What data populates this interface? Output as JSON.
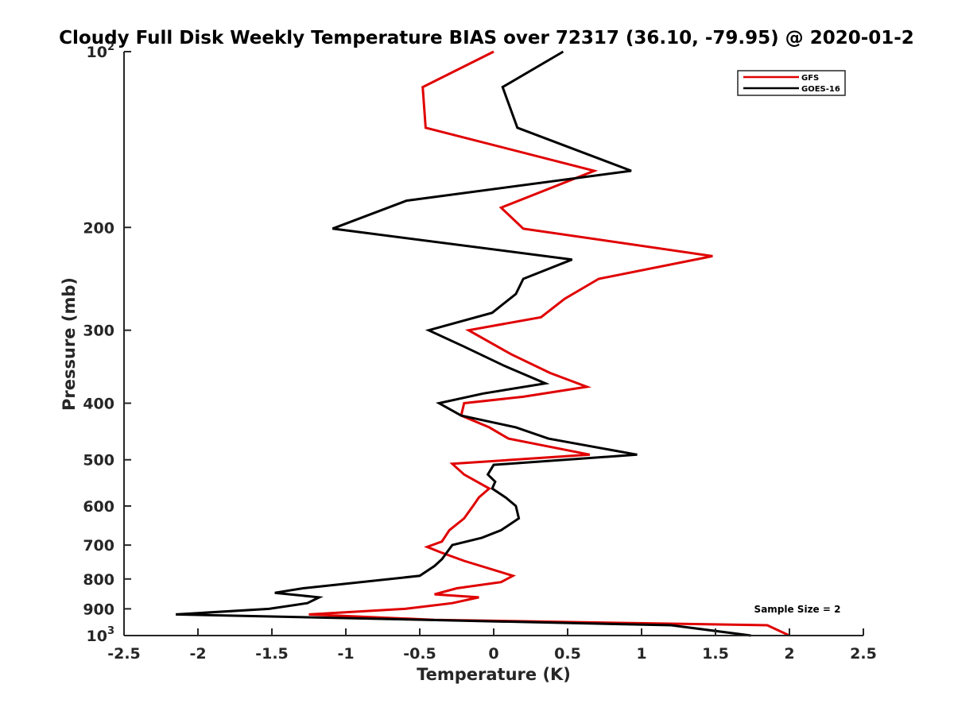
{
  "chart_data": {
    "type": "line",
    "title": "Cloudy Full Disk Weekly Temperature BIAS over 72317 (36.10, -79.95) @ 2020-01-2",
    "xlabel": "Temperature (K)",
    "ylabel": "Pressure (mb)",
    "xlim": [
      -2.5,
      2.5
    ],
    "ylim": [
      100,
      1000
    ],
    "y_scale": "log",
    "y_reversed": true,
    "grid": false,
    "legend_position": "top-right",
    "x_ticks": [
      "-2.5",
      "-2",
      "-1.5",
      "-1",
      "-0.5",
      "0",
      "0.5",
      "1",
      "1.5",
      "2",
      "2.5"
    ],
    "y_ticks": [
      {
        "value": 100,
        "label": "10",
        "sup": "2"
      },
      {
        "value": 200,
        "label": "200",
        "sup": ""
      },
      {
        "value": 300,
        "label": "300",
        "sup": ""
      },
      {
        "value": 400,
        "label": "400",
        "sup": ""
      },
      {
        "value": 500,
        "label": "500",
        "sup": ""
      },
      {
        "value": 600,
        "label": "600",
        "sup": ""
      },
      {
        "value": 700,
        "label": "700",
        "sup": ""
      },
      {
        "value": 800,
        "label": "800",
        "sup": ""
      },
      {
        "value": 900,
        "label": "900",
        "sup": ""
      },
      {
        "value": 1000,
        "label": "10",
        "sup": "3"
      }
    ],
    "annotation": "Sample Size = 2",
    "series": [
      {
        "name": "GFS",
        "color": "#e00000",
        "points": [
          [
            0.0,
            100
          ],
          [
            -0.48,
            115
          ],
          [
            -0.46,
            135
          ],
          [
            0.68,
            160
          ],
          [
            0.05,
            185
          ],
          [
            0.2,
            201
          ],
          [
            1.48,
            224
          ],
          [
            0.71,
            245
          ],
          [
            0.48,
            265
          ],
          [
            0.32,
            285
          ],
          [
            -0.17,
            300
          ],
          [
            0.12,
            330
          ],
          [
            0.38,
            355
          ],
          [
            0.63,
            375
          ],
          [
            0.2,
            390
          ],
          [
            -0.2,
            400
          ],
          [
            -0.22,
            420
          ],
          [
            -0.03,
            440
          ],
          [
            0.1,
            460
          ],
          [
            0.65,
            490
          ],
          [
            -0.28,
            508
          ],
          [
            -0.2,
            530
          ],
          [
            -0.03,
            560
          ],
          [
            -0.1,
            580
          ],
          [
            -0.14,
            600
          ],
          [
            -0.2,
            630
          ],
          [
            -0.3,
            660
          ],
          [
            -0.35,
            690
          ],
          [
            -0.45,
            705
          ],
          [
            -0.36,
            720
          ],
          [
            -0.2,
            745
          ],
          [
            0.13,
            790
          ],
          [
            0.05,
            810
          ],
          [
            -0.25,
            830
          ],
          [
            -0.4,
            850
          ],
          [
            -0.1,
            860
          ],
          [
            -0.28,
            880
          ],
          [
            -0.6,
            900
          ],
          [
            -1.25,
            920
          ],
          [
            -0.4,
            940
          ],
          [
            1.85,
            960
          ],
          [
            2.0,
            1000
          ]
        ]
      },
      {
        "name": "GOES-16",
        "color": "#000000",
        "points": [
          [
            0.47,
            100
          ],
          [
            0.06,
            115
          ],
          [
            0.16,
            135
          ],
          [
            0.93,
            160
          ],
          [
            -0.59,
            180
          ],
          [
            -1.09,
            201
          ],
          [
            0.53,
            227
          ],
          [
            0.2,
            245
          ],
          [
            0.15,
            260
          ],
          [
            -0.01,
            280
          ],
          [
            -0.44,
            300
          ],
          [
            -0.2,
            320
          ],
          [
            0.07,
            345
          ],
          [
            0.35,
            370
          ],
          [
            -0.07,
            385
          ],
          [
            -0.37,
            400
          ],
          [
            -0.22,
            420
          ],
          [
            0.15,
            440
          ],
          [
            0.37,
            460
          ],
          [
            0.97,
            490
          ],
          [
            0.0,
            510
          ],
          [
            -0.04,
            530
          ],
          [
            0.01,
            545
          ],
          [
            -0.01,
            560
          ],
          [
            0.08,
            580
          ],
          [
            0.15,
            600
          ],
          [
            0.17,
            630
          ],
          [
            0.05,
            660
          ],
          [
            -0.08,
            680
          ],
          [
            -0.28,
            700
          ],
          [
            -0.35,
            740
          ],
          [
            -0.4,
            760
          ],
          [
            -0.5,
            790
          ],
          [
            -1.29,
            830
          ],
          [
            -1.48,
            845
          ],
          [
            -1.18,
            860
          ],
          [
            -1.26,
            880
          ],
          [
            -1.52,
            900
          ],
          [
            -2.15,
            920
          ],
          [
            1.2,
            960
          ],
          [
            1.74,
            1000
          ]
        ]
      }
    ]
  }
}
